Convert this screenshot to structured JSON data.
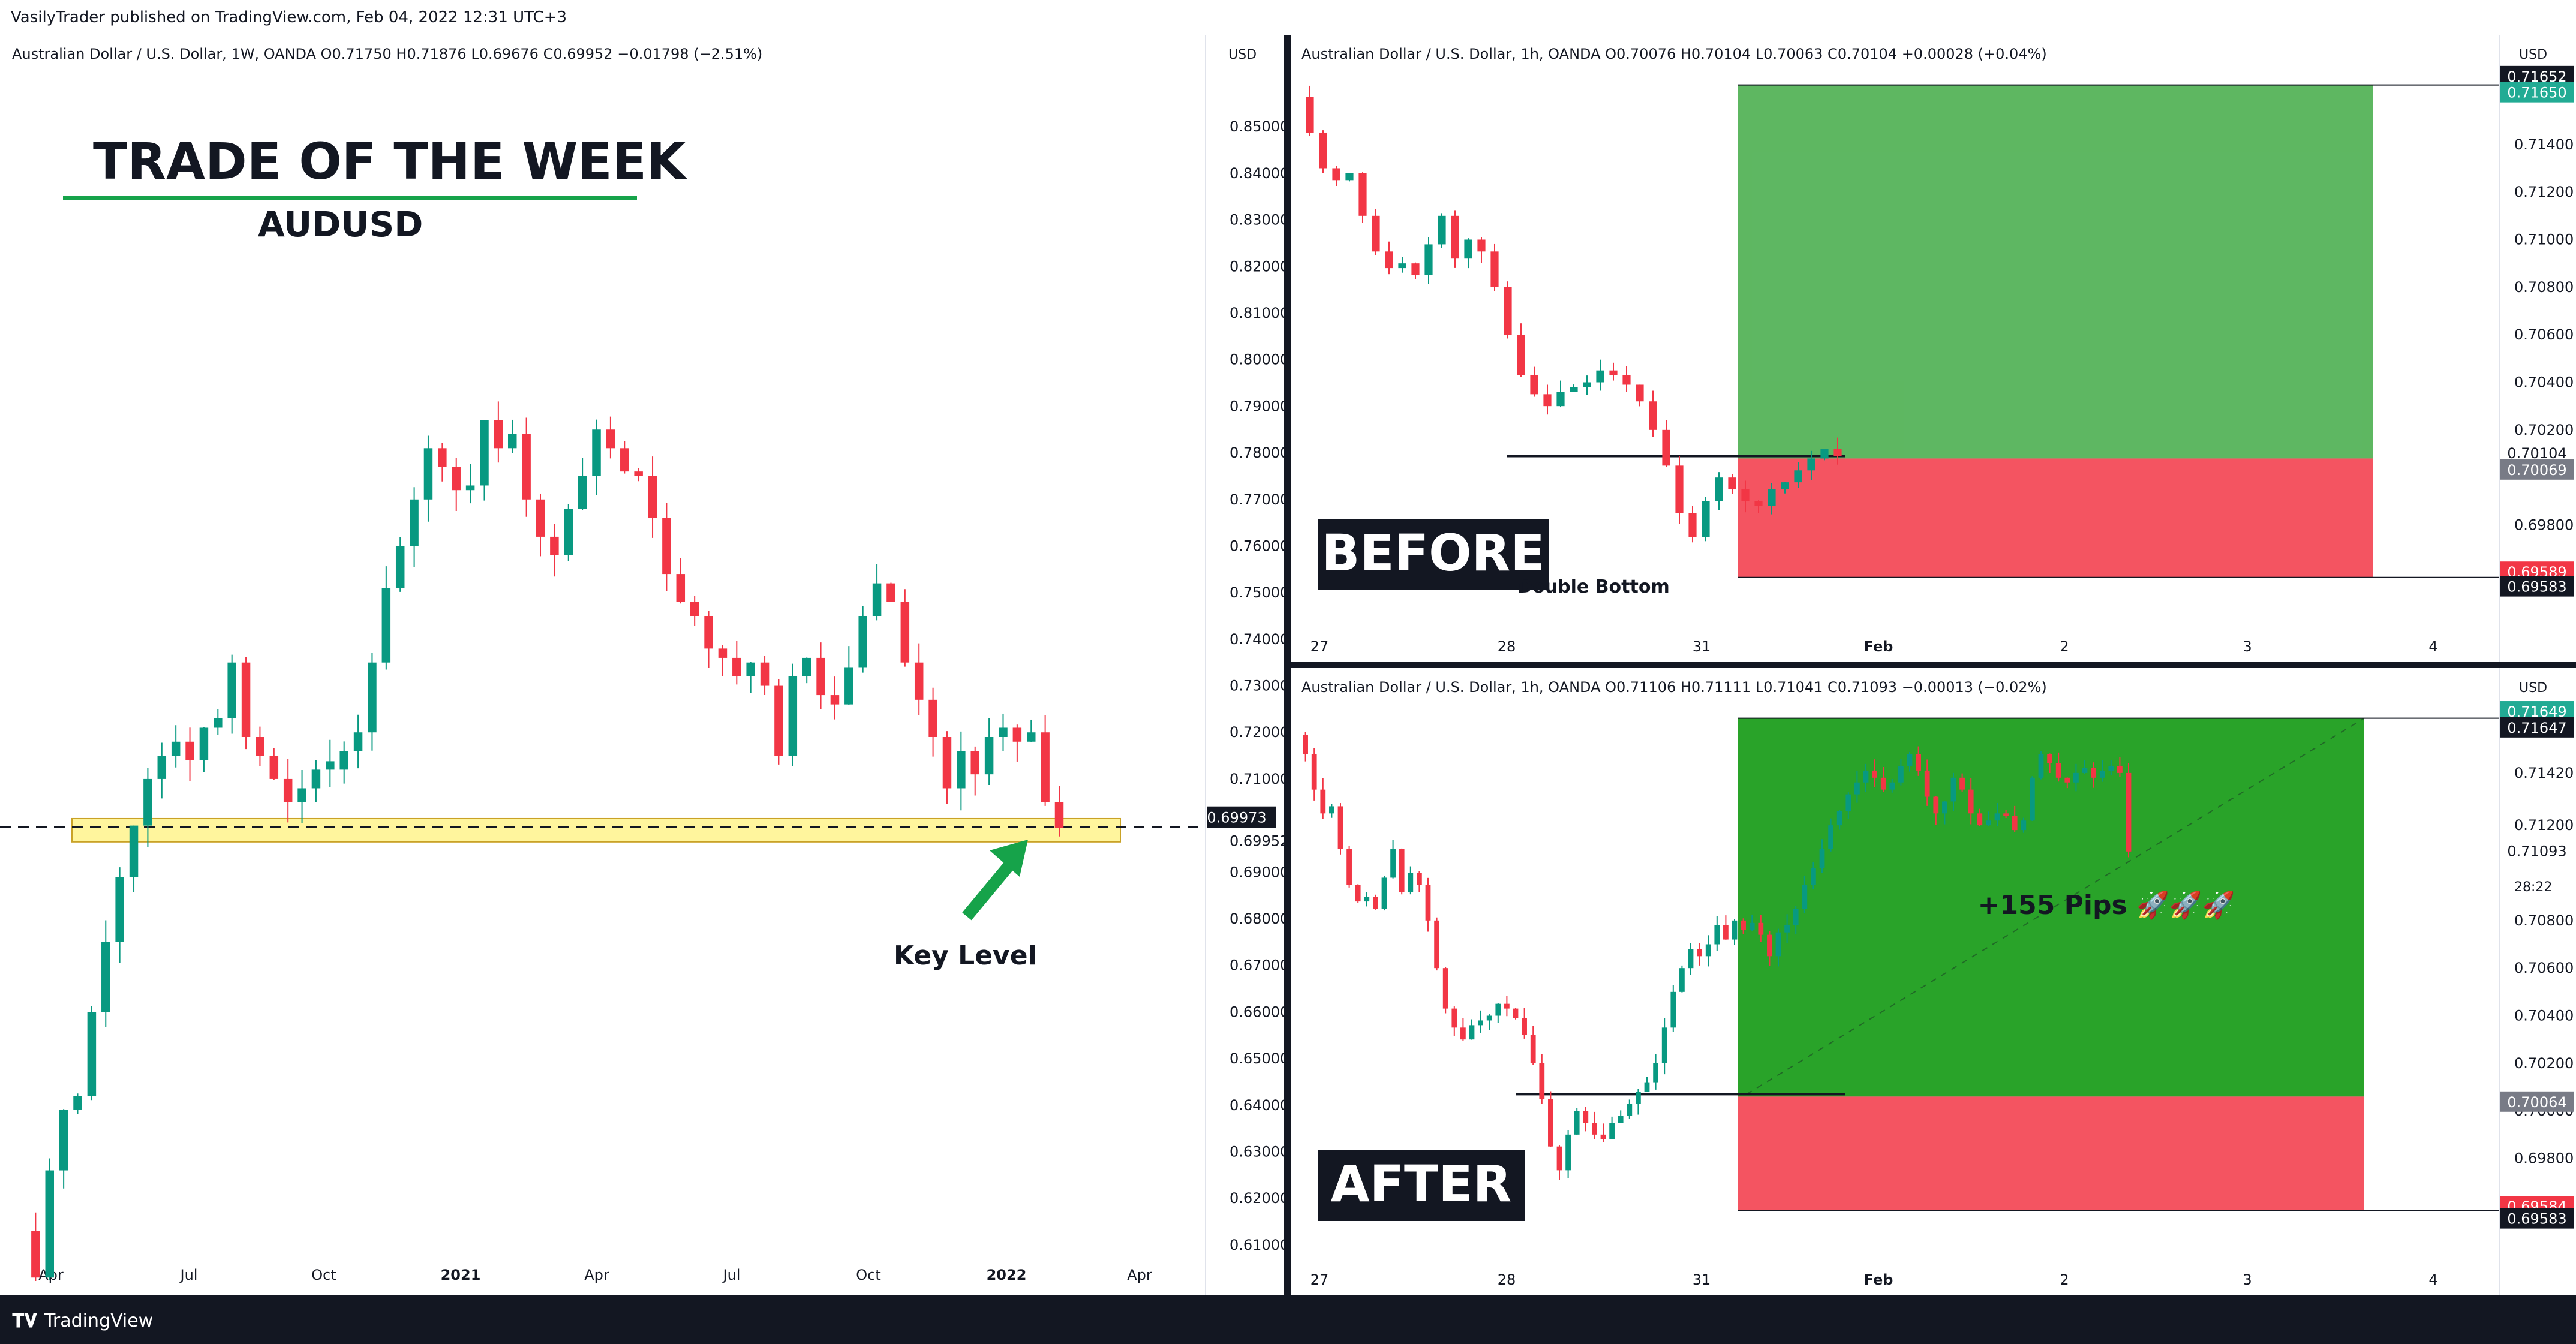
{
  "header": {
    "text": "VasilyTrader published on TradingView.com, Feb 04, 2022 12:31 UTC+3"
  },
  "footer": {
    "brand": "TradingView",
    "logo": "TV-logo-icon"
  },
  "colors": {
    "up": "#089981",
    "down": "#f23645",
    "tp_zone": "#4caf50",
    "sl_zone": "#f23645",
    "key_level": "#fff59d",
    "arrow": "#16a34a"
  },
  "chart_data": [
    {
      "type": "candlestick",
      "symbol_line": "Australian Dollar / U.S. Dollar, 1W, OANDA  O0.71750  H0.71876  L0.69676  C0.69952  −0.01798 (−2.51%)",
      "currency": "USD",
      "title": "TRADE OF THE WEEK",
      "subtitle": "AUDUSD",
      "annotation": "Key Level",
      "ylim": [
        0.602,
        0.862
      ],
      "y_ticks": [
        "0.85000",
        "0.84000",
        "0.83000",
        "0.82000",
        "0.81000",
        "0.80000",
        "0.79000",
        "0.78000",
        "0.77000",
        "0.76000",
        "0.75000",
        "0.74000",
        "0.73000",
        "0.72000",
        "0.71000",
        "0.69000",
        "0.68000",
        "0.67000",
        "0.66000",
        "0.65000",
        "0.64000",
        "0.63000",
        "0.62000",
        "0.61000"
      ],
      "x_ticks": [
        "Apr",
        "Jul",
        "Oct",
        "2021",
        "Apr",
        "Jul",
        "Oct",
        "2022",
        "Apr"
      ],
      "price_labels": [
        {
          "value": 0.69973,
          "text": "0.69973"
        },
        {
          "value": 0.69952,
          "text": "0.69952"
        }
      ],
      "key_level": [
        0.6965,
        0.7015
      ],
      "close_dashed": 0.6997,
      "close_path": [
        0.613,
        0.603,
        0.626,
        0.639,
        0.642,
        0.66,
        0.675,
        0.689,
        0.7,
        0.71,
        0.715,
        0.718,
        0.714,
        0.721,
        0.723,
        0.735,
        0.719,
        0.715,
        0.71,
        0.705,
        0.708,
        0.712,
        0.712,
        0.716,
        0.72,
        0.735,
        0.751,
        0.76,
        0.77,
        0.781,
        0.777,
        0.772,
        0.773,
        0.787,
        0.781,
        0.784,
        0.77,
        0.762,
        0.758,
        0.768,
        0.775,
        0.785,
        0.781,
        0.776,
        0.775,
        0.766,
        0.754,
        0.748,
        0.745,
        0.738,
        0.736,
        0.732,
        0.735,
        0.73,
        0.715,
        0.732,
        0.736,
        0.728,
        0.726,
        0.734,
        0.745,
        0.752,
        0.748,
        0.735,
        0.727,
        0.719,
        0.708,
        0.716,
        0.711,
        0.719,
        0.721,
        0.718,
        0.72,
        0.705,
        0.6995
      ]
    },
    {
      "type": "candlestick",
      "panel_label": "BEFORE",
      "symbol_line": "Australian Dollar / U.S. Dollar, 1h, OANDA  O0.70076  H0.70104  L0.70063  C0.70104  +0.00028 (+0.04%)",
      "currency": "USD",
      "annotation": "Double Bottom",
      "ylim": [
        0.6934,
        0.7176
      ],
      "y_ticks": [
        "0.71400",
        "0.71200",
        "0.71000",
        "0.70800",
        "0.70600",
        "0.70400",
        "0.70200",
        "0.69800"
      ],
      "x_ticks": [
        "27",
        "28",
        "31",
        "Feb",
        "2",
        "3",
        "4"
      ],
      "price_labels": [
        {
          "value": 0.71652,
          "text": "0.71652",
          "kind": "dark"
        },
        {
          "value": 0.7165,
          "text": "0.71650",
          "kind": "green"
        },
        {
          "value": 0.70104,
          "text": "0.70104",
          "kind": "plain"
        },
        {
          "value": 0.70069,
          "text": "0.70069",
          "kind": "gray"
        },
        {
          "value": 0.69589,
          "text": "0.69589",
          "kind": "red"
        },
        {
          "value": 0.69583,
          "text": "0.69583",
          "kind": "dark"
        }
      ],
      "position": {
        "entry": 0.7008,
        "target": 0.7165,
        "stop": 0.6958
      },
      "double_bottom_level": 0.7009,
      "close_path": [
        0.716,
        0.7145,
        0.713,
        0.7125,
        0.7128,
        0.711,
        0.7095,
        0.7088,
        0.709,
        0.7085,
        0.7098,
        0.711,
        0.7092,
        0.71,
        0.7095,
        0.708,
        0.706,
        0.7043,
        0.7035,
        0.703,
        0.7036,
        0.7038,
        0.704,
        0.7045,
        0.7043,
        0.7039,
        0.7032,
        0.702,
        0.7005,
        0.6985,
        0.6975,
        0.699,
        0.7,
        0.6995,
        0.699,
        0.6988,
        0.6995,
        0.6998,
        0.7003,
        0.7008,
        0.7012,
        0.7009
      ]
    },
    {
      "type": "candlestick",
      "panel_label": "AFTER",
      "symbol_line": "Australian Dollar / U.S. Dollar, 1h, OANDA  O0.71106  H0.71111  L0.71041  C0.71093  −0.00013 (−0.02%)",
      "currency": "USD",
      "annotation": "+155 Pips 🚀🚀🚀",
      "ylim": [
        0.6934,
        0.7176
      ],
      "y_ticks": [
        "0.71420",
        "0.71200",
        "0.70800",
        "0.70600",
        "0.70400",
        "0.70200",
        "0.70000",
        "0.69800"
      ],
      "x_ticks": [
        "27",
        "28",
        "31",
        "Feb",
        "2",
        "3",
        "4"
      ],
      "price_labels": [
        {
          "value": 0.71649,
          "text": "0.71649",
          "kind": "green"
        },
        {
          "value": 0.71647,
          "text": "0.71647",
          "kind": "dark"
        },
        {
          "value": 0.71093,
          "text": "0.71093",
          "kind": "plain"
        },
        {
          "value": 0.70064,
          "text": "0.70064",
          "kind": "gray"
        },
        {
          "value": 0.69584,
          "text": "0.69584",
          "kind": "red"
        },
        {
          "value": 0.69583,
          "text": "0.69583",
          "kind": "dark"
        }
      ],
      "countdown": "28:22",
      "position": {
        "entry": 0.7006,
        "target": 0.7165,
        "stop": 0.6958
      },
      "double_bottom_level": 0.7007,
      "close_path": [
        0.7158,
        0.715,
        0.7135,
        0.7125,
        0.7128,
        0.711,
        0.7095,
        0.7088,
        0.709,
        0.7085,
        0.7098,
        0.711,
        0.7092,
        0.71,
        0.7095,
        0.708,
        0.706,
        0.7043,
        0.7035,
        0.703,
        0.7036,
        0.7038,
        0.704,
        0.7045,
        0.7043,
        0.7039,
        0.7032,
        0.702,
        0.7005,
        0.6985,
        0.6975,
        0.699,
        0.7,
        0.6995,
        0.699,
        0.6988,
        0.6995,
        0.6998,
        0.7003,
        0.7008,
        0.7012,
        0.702,
        0.7035,
        0.705,
        0.706,
        0.7068,
        0.7065,
        0.707,
        0.7078,
        0.7072,
        0.708,
        0.7076,
        0.7079,
        0.7074,
        0.7065,
        0.7075,
        0.7078,
        0.7085,
        0.7095,
        0.7102,
        0.711,
        0.712,
        0.7126,
        0.7133,
        0.7138,
        0.7143,
        0.714,
        0.7135,
        0.7138,
        0.7145,
        0.715,
        0.7143,
        0.7132,
        0.7125,
        0.713,
        0.714,
        0.7135,
        0.7125,
        0.712,
        0.7122,
        0.7125,
        0.7124,
        0.7118,
        0.7122,
        0.714,
        0.715,
        0.7146,
        0.714,
        0.7138,
        0.7142,
        0.7144,
        0.714,
        0.7143,
        0.7145,
        0.7142,
        0.7109
      ]
    }
  ]
}
